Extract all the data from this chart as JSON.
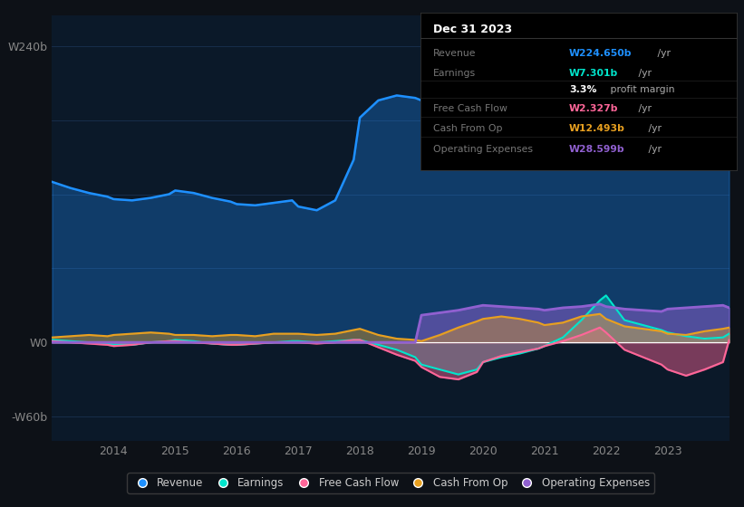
{
  "bg_color": "#0d1117",
  "plot_bg_color": "#0b1929",
  "grid_color": "#1a3050",
  "zero_line_color": "#ffffff",
  "colors": {
    "revenue": "#1e90ff",
    "earnings": "#00e5cc",
    "free_cash_flow": "#ff6699",
    "cash_from_op": "#e8a020",
    "operating_expenses": "#9060d0"
  },
  "years": [
    2013.0,
    2013.3,
    2013.6,
    2013.9,
    2014.0,
    2014.3,
    2014.6,
    2014.9,
    2015.0,
    2015.3,
    2015.6,
    2015.9,
    2016.0,
    2016.3,
    2016.6,
    2016.9,
    2017.0,
    2017.3,
    2017.6,
    2017.9,
    2018.0,
    2018.3,
    2018.6,
    2018.9,
    2019.0,
    2019.3,
    2019.6,
    2019.9,
    2020.0,
    2020.3,
    2020.6,
    2020.9,
    2021.0,
    2021.3,
    2021.6,
    2021.9,
    2022.0,
    2022.3,
    2022.6,
    2022.9,
    2023.0,
    2023.3,
    2023.6,
    2023.9,
    2024.0
  ],
  "revenue": [
    130,
    125,
    121,
    118,
    116,
    115,
    117,
    120,
    123,
    121,
    117,
    114,
    112,
    111,
    113,
    115,
    110,
    107,
    115,
    148,
    182,
    196,
    200,
    198,
    196,
    194,
    197,
    200,
    203,
    206,
    200,
    194,
    158,
    157,
    174,
    190,
    185,
    200,
    206,
    211,
    215,
    221,
    229,
    236,
    224
  ],
  "earnings": [
    2,
    1,
    0,
    -1,
    -2,
    -2,
    0,
    1,
    2,
    1,
    -1,
    -2,
    -2,
    -1,
    0,
    1,
    1,
    0,
    1,
    2,
    2,
    -2,
    -6,
    -12,
    -18,
    -22,
    -26,
    -22,
    -16,
    -12,
    -9,
    -5,
    -3,
    4,
    18,
    34,
    38,
    18,
    14,
    10,
    8,
    5,
    3,
    4,
    7
  ],
  "free_cash_flow": [
    1,
    0,
    -1,
    -2,
    -3,
    -2,
    0,
    1,
    1,
    0,
    -1,
    -2,
    -2,
    -1,
    0,
    0,
    0,
    -1,
    0,
    2,
    2,
    -4,
    -10,
    -15,
    -20,
    -28,
    -30,
    -24,
    -16,
    -11,
    -8,
    -5,
    -3,
    1,
    6,
    12,
    8,
    -6,
    -12,
    -18,
    -22,
    -27,
    -22,
    -16,
    2
  ],
  "cash_from_op": [
    4,
    5,
    6,
    5,
    6,
    7,
    8,
    7,
    6,
    6,
    5,
    6,
    6,
    5,
    7,
    7,
    7,
    6,
    7,
    10,
    11,
    6,
    3,
    2,
    1,
    6,
    12,
    17,
    19,
    21,
    19,
    16,
    14,
    16,
    21,
    23,
    19,
    13,
    11,
    9,
    7,
    6,
    9,
    11,
    12
  ],
  "operating_expenses": [
    0,
    0,
    0,
    0,
    0,
    0,
    0,
    0,
    0,
    0,
    0,
    0,
    0,
    0,
    0,
    0,
    0,
    0,
    0,
    0,
    0,
    0,
    0,
    0,
    22,
    24,
    26,
    29,
    30,
    29,
    28,
    27,
    26,
    28,
    29,
    31,
    29,
    27,
    26,
    25,
    27,
    28,
    29,
    30,
    28
  ],
  "xlim": [
    2013.0,
    2024.0
  ],
  "ylim": [
    -80,
    265
  ],
  "xticks": [
    2014,
    2015,
    2016,
    2017,
    2018,
    2019,
    2020,
    2021,
    2022,
    2023
  ],
  "ytick_vals": [
    240,
    0,
    -60
  ],
  "ytick_labels": [
    "W240b",
    "W0",
    "-W60b"
  ],
  "tooltip_title": "Dec 31 2023",
  "tooltip_rows": [
    {
      "label": "Revenue",
      "value": "W224.650b",
      "unit": " /yr",
      "color": "#1e90ff",
      "bold": true
    },
    {
      "label": "Earnings",
      "value": "W7.301b",
      "unit": " /yr",
      "color": "#00e5cc",
      "bold": true
    },
    {
      "label": "",
      "value": "3.3%",
      "unit": " profit margin",
      "color": "#ffffff",
      "bold": true
    },
    {
      "label": "Free Cash Flow",
      "value": "W2.327b",
      "unit": " /yr",
      "color": "#ff6699",
      "bold": true
    },
    {
      "label": "Cash From Op",
      "value": "W12.493b",
      "unit": " /yr",
      "color": "#e8a020",
      "bold": true
    },
    {
      "label": "Operating Expenses",
      "value": "W28.599b",
      "unit": " /yr",
      "color": "#9060d0",
      "bold": true
    }
  ],
  "legend": [
    {
      "label": "Revenue",
      "color": "#1e90ff"
    },
    {
      "label": "Earnings",
      "color": "#00e5cc"
    },
    {
      "label": "Free Cash Flow",
      "color": "#ff6699"
    },
    {
      "label": "Cash From Op",
      "color": "#e8a020"
    },
    {
      "label": "Operating Expenses",
      "color": "#9060d0"
    }
  ]
}
